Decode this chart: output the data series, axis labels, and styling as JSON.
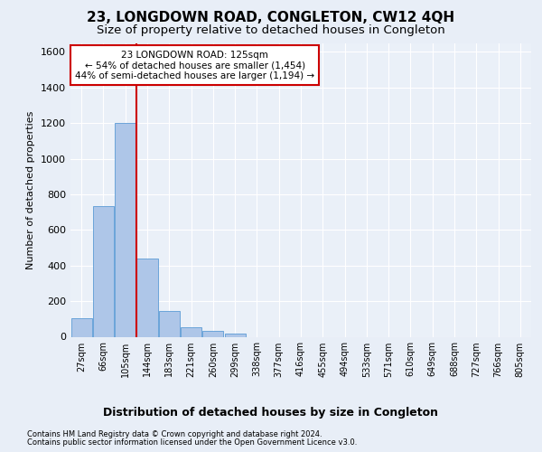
{
  "title": "23, LONGDOWN ROAD, CONGLETON, CW12 4QH",
  "subtitle": "Size of property relative to detached houses in Congleton",
  "xlabel_bottom": "Distribution of detached houses by size in Congleton",
  "ylabel": "Number of detached properties",
  "footer_line1": "Contains HM Land Registry data © Crown copyright and database right 2024.",
  "footer_line2": "Contains public sector information licensed under the Open Government Licence v3.0.",
  "bar_labels": [
    "27sqm",
    "66sqm",
    "105sqm",
    "144sqm",
    "183sqm",
    "221sqm",
    "260sqm",
    "299sqm",
    "338sqm",
    "377sqm",
    "416sqm",
    "455sqm",
    "494sqm",
    "533sqm",
    "571sqm",
    "610sqm",
    "649sqm",
    "688sqm",
    "727sqm",
    "766sqm",
    "805sqm"
  ],
  "bar_values": [
    105,
    735,
    1200,
    440,
    145,
    55,
    32,
    18,
    0,
    0,
    0,
    0,
    0,
    0,
    0,
    0,
    0,
    0,
    0,
    0,
    0
  ],
  "bar_color": "#aec6e8",
  "bar_edge_color": "#5b9bd5",
  "vline_color": "#cc0000",
  "annotation_text": "23 LONGDOWN ROAD: 125sqm\n← 54% of detached houses are smaller (1,454)\n44% of semi-detached houses are larger (1,194) →",
  "annotation_box_color": "#ffffff",
  "annotation_box_edge": "#cc0000",
  "ylim": [
    0,
    1650
  ],
  "yticks": [
    0,
    200,
    400,
    600,
    800,
    1000,
    1200,
    1400,
    1600
  ],
  "bg_color": "#e8eef7",
  "plot_bg_color": "#eaf0f8",
  "grid_color": "#ffffff",
  "title_fontsize": 11,
  "subtitle_fontsize": 9.5
}
